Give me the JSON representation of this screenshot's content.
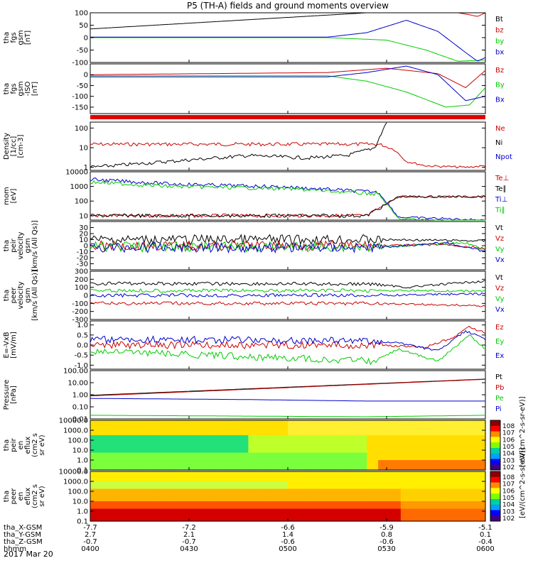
{
  "title": "P5 (TH-A) fields and ground moments overview",
  "date_label": "2017 Mar 20",
  "chart_data": [
    {
      "type": "line",
      "ylabel": [
        "tha",
        "fgs",
        "gsm",
        "[nT]"
      ],
      "ylim": [
        -100,
        100
      ],
      "ylim_scale": "linear",
      "yticks": [
        "100",
        "50",
        "0",
        "-50",
        "-100"
      ],
      "grid": false,
      "series": [
        {
          "name": "Bt",
          "color": "#000000",
          "x": [
            0,
            0.7
          ],
          "y": [
            35,
            100
          ]
        },
        {
          "name": "bz",
          "color": "#cc0000",
          "x": [
            0.93,
            0.96,
            0.98,
            1.0
          ],
          "y": [
            100,
            92,
            85,
            100
          ]
        },
        {
          "name": "by",
          "color": "#00cc00",
          "x": [
            0,
            0.6,
            0.75,
            0.85,
            0.93,
            1.0
          ],
          "y": [
            0,
            0,
            -10,
            -50,
            -95,
            -90
          ]
        },
        {
          "name": "bx",
          "color": "#0000cc",
          "x": [
            0,
            0.6,
            0.7,
            0.8,
            0.88,
            0.95,
            0.98,
            1.0
          ],
          "y": [
            2,
            2,
            20,
            70,
            25,
            -60,
            -95,
            -80
          ]
        }
      ]
    },
    {
      "type": "line",
      "ylabel": [
        "tha",
        "fgs",
        "gsm",
        "-ISO",
        "[nT]"
      ],
      "ylim": [
        -180,
        50
      ],
      "ylim_scale": "linear",
      "yticks": [
        "0",
        "-50",
        "-100",
        "-150"
      ],
      "series": [
        {
          "name": "Bz",
          "color": "#cc0000",
          "x": [
            0,
            0.6,
            0.75,
            0.88,
            0.95,
            1.0
          ],
          "y": [
            0,
            10,
            30,
            5,
            -60,
            20
          ]
        },
        {
          "name": "By",
          "color": "#00cc00",
          "x": [
            0,
            0.6,
            0.7,
            0.8,
            0.9,
            0.96,
            1.0
          ],
          "y": [
            -5,
            -5,
            -30,
            -80,
            -150,
            -140,
            -60
          ]
        },
        {
          "name": "Bx",
          "color": "#0000cc",
          "x": [
            0,
            0.6,
            0.7,
            0.8,
            0.88,
            0.95,
            1.0
          ],
          "y": [
            -10,
            -10,
            10,
            40,
            0,
            -120,
            -100
          ]
        }
      ]
    },
    {
      "type": "line",
      "ylabel": [
        "Density",
        "[1/cc]",
        "[cm-3]"
      ],
      "ylim": [
        0.7,
        200
      ],
      "ylim_scale": "log",
      "yticks": [
        "100",
        "10",
        "1"
      ],
      "series": [
        {
          "name": "Ne",
          "color": "#cc0000",
          "x": [
            0,
            0.73,
            0.77,
            0.8,
            0.85,
            0.95,
            1.0
          ],
          "y": [
            15,
            15,
            8,
            2,
            1.2,
            1,
            1.2
          ]
        },
        {
          "name": "Ni",
          "color": "#000000",
          "x": [
            0,
            0.2,
            0.4,
            0.55,
            0.65,
            0.72,
            0.75
          ],
          "y": [
            1,
            2,
            4,
            3,
            4,
            10,
            200
          ]
        },
        {
          "name": "Npot",
          "color": "#0000cc",
          "x": [],
          "y": []
        }
      ]
    },
    {
      "type": "line",
      "ylabel": [
        "mom",
        "[eV]"
      ],
      "ylim": [
        5,
        10000
      ],
      "ylim_scale": "log",
      "yticks": [
        "10000",
        "1000",
        "100",
        "10"
      ],
      "series": [
        {
          "name": "Te⊥",
          "color": "#cc0000",
          "x": [
            0,
            0.7,
            0.78,
            1.0
          ],
          "y": [
            10,
            10,
            200,
            200
          ]
        },
        {
          "name": "Te∥",
          "color": "#000000",
          "x": [
            0,
            0.7,
            0.78,
            1.0
          ],
          "y": [
            10,
            10,
            200,
            200
          ]
        },
        {
          "name": "Ti⊥",
          "color": "#0000cc",
          "x": [
            0,
            0.2,
            0.5,
            0.73,
            0.78,
            1.0
          ],
          "y": [
            3000,
            1500,
            900,
            400,
            8,
            5
          ]
        },
        {
          "name": "Ti∥",
          "color": "#00cc00",
          "x": [
            0,
            0.2,
            0.5,
            0.73,
            0.78,
            1.0
          ],
          "y": [
            2000,
            1000,
            700,
            300,
            6,
            4
          ]
        }
      ]
    },
    {
      "type": "line",
      "ylabel": [
        "tha",
        "peir",
        "velocity",
        "gsm",
        "[km/s (All Qs)]"
      ],
      "ylim": [
        -40,
        40
      ],
      "ylim_scale": "linear",
      "yticks": [
        "30",
        "20",
        "10",
        "0",
        "-10",
        "-20",
        "-30"
      ],
      "series": [
        {
          "name": "Vt",
          "color": "#000000",
          "x": [
            0,
            0.73,
            1.0
          ],
          "y": [
            10,
            10,
            8
          ]
        },
        {
          "name": "Vz",
          "color": "#cc0000",
          "x": [
            0,
            0.73,
            0.9,
            1.0
          ],
          "y": [
            0,
            0,
            2,
            -5
          ]
        },
        {
          "name": "Vy",
          "color": "#00cc00",
          "x": [
            0,
            0.73,
            0.95,
            1.0
          ],
          "y": [
            -2,
            -2,
            5,
            -8
          ]
        },
        {
          "name": "Vx",
          "color": "#0000cc",
          "x": [
            0,
            0.73,
            0.9,
            1.0
          ],
          "y": [
            -3,
            -3,
            5,
            -10
          ]
        }
      ]
    },
    {
      "type": "line",
      "ylabel": [
        "tha",
        "peer",
        "velocity",
        "gsm",
        "[km/s (All Qs)]"
      ],
      "ylim": [
        -300,
        300
      ],
      "ylim_scale": "linear",
      "yticks": [
        "300",
        "200",
        "100",
        "0",
        "-100",
        "-200",
        "-300"
      ],
      "series": [
        {
          "name": "Vt",
          "color": "#000000",
          "x": [
            0,
            0.72,
            0.8,
            1.0
          ],
          "y": [
            150,
            140,
            100,
            180
          ]
        },
        {
          "name": "Vz",
          "color": "#cc0000",
          "x": [
            0,
            0.72,
            1.0
          ],
          "y": [
            -100,
            -100,
            -130
          ]
        },
        {
          "name": "Vy",
          "color": "#00cc00",
          "x": [
            0,
            0.72,
            1.0
          ],
          "y": [
            60,
            60,
            50
          ]
        },
        {
          "name": "Vx",
          "color": "#0000cc",
          "x": [
            0,
            0.72,
            1.0
          ],
          "y": [
            0,
            0,
            20
          ]
        }
      ]
    },
    {
      "type": "line",
      "ylabel": [
        "E=-VxB",
        "[mV/m]"
      ],
      "ylim": [
        -1.2,
        1.2
      ],
      "ylim_scale": "linear",
      "yticks": [
        "1.0",
        "0.5",
        "0.0",
        "-0.5",
        "-1.0"
      ],
      "series": [
        {
          "name": "Ez",
          "color": "#cc0000",
          "x": [
            0,
            0.72,
            0.85,
            0.92,
            0.96,
            1.0
          ],
          "y": [
            0,
            0,
            -0.1,
            0.4,
            0.9,
            0.6
          ]
        },
        {
          "name": "Ey",
          "color": "#00cc00",
          "x": [
            0,
            0.72,
            0.78,
            0.88,
            0.96,
            1.0
          ],
          "y": [
            -0.3,
            -0.8,
            -0.2,
            -0.8,
            0.5,
            -0.2
          ]
        },
        {
          "name": "Ex",
          "color": "#0000cc",
          "x": [
            0,
            0.72,
            0.78,
            0.88,
            0.95,
            1.0
          ],
          "y": [
            0.3,
            0.2,
            0.1,
            -0.3,
            0.7,
            0.3
          ]
        }
      ]
    },
    {
      "type": "line",
      "ylabel": [
        "Pressure",
        "[nPa]"
      ],
      "ylim": [
        0.01,
        100
      ],
      "ylim_scale": "log",
      "yticks": [
        "100.00",
        "10.00",
        "1.00",
        "0.10",
        "0.01"
      ],
      "series": [
        {
          "name": "Pt",
          "color": "#000000",
          "x": [
            0,
            1.0
          ],
          "y": [
            0.9,
            20
          ]
        },
        {
          "name": "Pb",
          "color": "#cc0000",
          "x": [
            0,
            1.0
          ],
          "y": [
            0.8,
            19
          ]
        },
        {
          "name": "Pe",
          "color": "#00cc00",
          "x": [
            0,
            0.7,
            1.0
          ],
          "y": [
            0.02,
            0.015,
            0.02
          ]
        },
        {
          "name": "Pi",
          "color": "#0000cc",
          "x": [
            0,
            0.4,
            0.7,
            1.0
          ],
          "y": [
            0.5,
            0.4,
            0.3,
            0.3
          ]
        }
      ]
    },
    {
      "type": "heatmap",
      "ylabel": [
        "tha",
        "peir",
        "en",
        "eflux",
        "(cm2 s",
        "sr eV)"
      ],
      "ylim": [
        0.1,
        10000
      ],
      "ylim_scale": "log",
      "yticks": [
        "10000.0",
        "1000.0",
        "100.0",
        "10.0",
        "1.0",
        "0.1"
      ],
      "colorbar_label": "[eV/(cm^2-s-sr-eV)]",
      "colorbar_ticks": [
        "10^8",
        "10^7",
        "10^6",
        "10^5",
        "10^4",
        "10^3",
        "10^2"
      ]
    },
    {
      "type": "heatmap",
      "ylabel": [
        "tha",
        "peer",
        "en",
        "eflux",
        "(cm2 s",
        "sr eV)"
      ],
      "ylim": [
        0.1,
        10000
      ],
      "ylim_scale": "log",
      "yticks": [
        "10000.0",
        "1000.0",
        "100.0",
        "10.0",
        "1.0",
        "0.1"
      ],
      "colorbar_label": "[eV/(cm^2-s-sr-eV)]",
      "colorbar_ticks": [
        "10^8",
        "10^7",
        "10^6",
        "10^5",
        "10^4",
        "10^3",
        "10^2"
      ]
    }
  ],
  "x_axis": {
    "rows": [
      {
        "label": "tha_X-GSM",
        "values": [
          "-7.7",
          "-7.2",
          "-6.6",
          "-5.9",
          "-5.1"
        ]
      },
      {
        "label": "tha_Y-GSM",
        "values": [
          "2.7",
          "2.1",
          "1.4",
          "0.8",
          "0.1"
        ]
      },
      {
        "label": "tha_Z-GSM",
        "values": [
          "-0.7",
          "-0.7",
          "-0.6",
          "-0.6",
          "-0.4"
        ]
      },
      {
        "label": "hhmm",
        "values": [
          "0400",
          "0430",
          "0500",
          "0530",
          "0600"
        ]
      }
    ]
  }
}
